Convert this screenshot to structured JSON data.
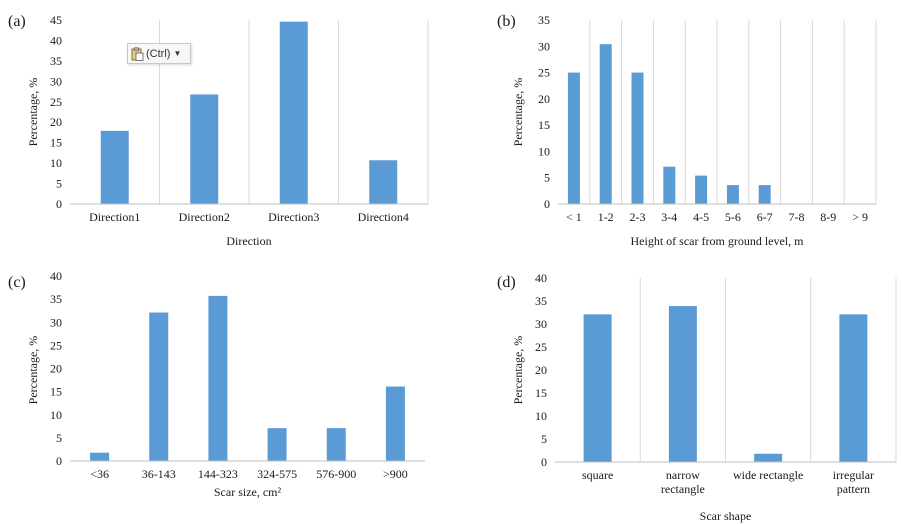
{
  "colors": {
    "bar": "#5b9bd5",
    "grid": "#d9d9d9",
    "axis": "#bfbfbf",
    "text": "#1a1a1a"
  },
  "paste_options": {
    "label": "(Ctrl)",
    "icon": "clipboard-paste-icon"
  },
  "chart_data": [
    {
      "panel": "(a)",
      "type": "bar",
      "categories": [
        "Direction1",
        "Direction2",
        "Direction3",
        "Direction4"
      ],
      "values": [
        17.9,
        26.8,
        44.6,
        10.7
      ],
      "xlabel": "Direction",
      "ylabel": "Percentage, %",
      "ylim": [
        0,
        45
      ],
      "yticks": [
        0,
        5,
        10,
        15,
        20,
        25,
        30,
        35,
        40,
        45
      ],
      "grid": "vertical"
    },
    {
      "panel": "(b)",
      "type": "bar",
      "categories": [
        "< 1",
        "1-2",
        "2-3",
        "3-4",
        "4-5",
        "5-6",
        "6-7",
        "7-8",
        "8-9",
        "> 9"
      ],
      "values": [
        25.0,
        30.4,
        25.0,
        7.1,
        5.4,
        3.6,
        3.6,
        0,
        0,
        0
      ],
      "xlabel": "Height of scar from ground level, m",
      "ylabel": "Percentage, %",
      "ylim": [
        0,
        35
      ],
      "yticks": [
        0,
        5,
        10,
        15,
        20,
        25,
        30,
        35
      ],
      "grid": "vertical"
    },
    {
      "panel": "(c)",
      "type": "bar",
      "categories": [
        "<36",
        "36-143",
        "144-323",
        "324-575",
        "576-900",
        ">900"
      ],
      "values": [
        1.8,
        32.1,
        35.7,
        7.1,
        7.1,
        16.1
      ],
      "xlabel": "Scar size, cm²",
      "ylabel": "Percentage, %",
      "ylim": [
        0,
        40
      ],
      "yticks": [
        0,
        5,
        10,
        15,
        20,
        25,
        30,
        35,
        40
      ],
      "grid": "none"
    },
    {
      "panel": "(d)",
      "type": "bar",
      "categories": [
        [
          "square"
        ],
        [
          "narrow",
          "rectangle"
        ],
        [
          "wide rectangle"
        ],
        [
          "irregular",
          "pattern"
        ]
      ],
      "values": [
        32.1,
        33.9,
        1.8,
        32.1
      ],
      "xlabel": "Scar shape",
      "ylabel": "Percentage, %",
      "ylim": [
        0,
        40
      ],
      "yticks": [
        0,
        5,
        10,
        15,
        20,
        25,
        30,
        35,
        40
      ],
      "grid": "vertical"
    }
  ]
}
